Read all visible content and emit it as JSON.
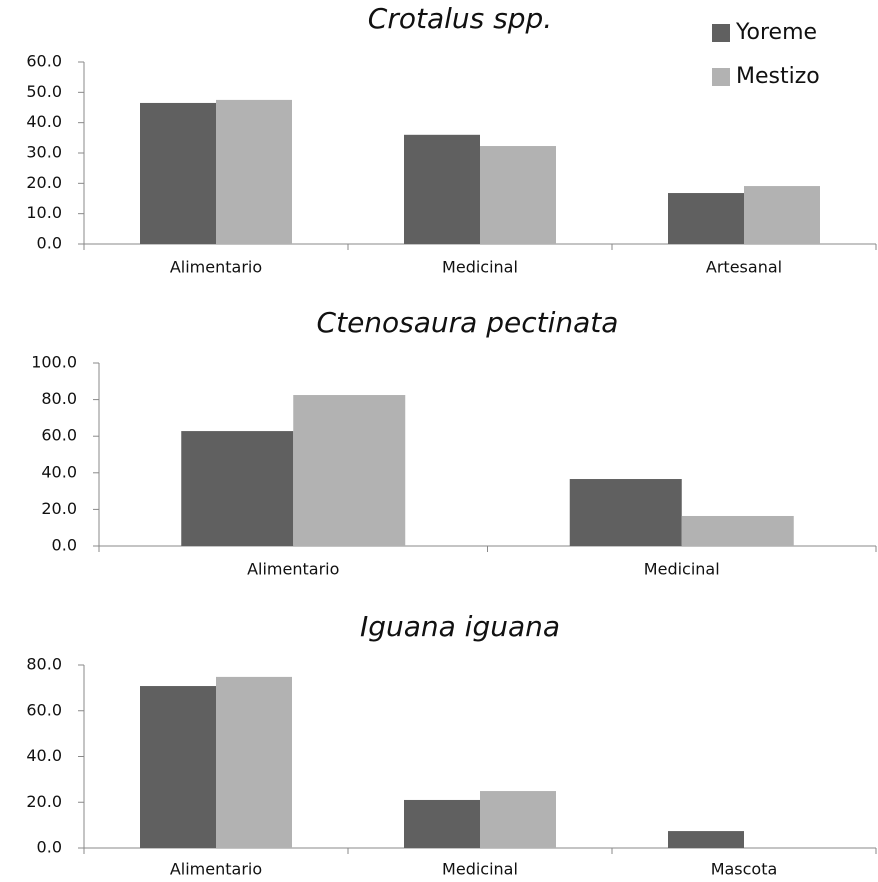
{
  "chart_data": [
    {
      "type": "bar",
      "title": "Crotalus spp.",
      "categories": [
        "Alimentario",
        "Medicinal",
        "Artesanal"
      ],
      "series": [
        {
          "name": "Yoreme",
          "color": "#606060",
          "values": [
            46.5,
            36.0,
            16.8
          ]
        },
        {
          "name": "Mestizo",
          "color": "#b2b2b2",
          "values": [
            47.5,
            32.3,
            19.1
          ]
        }
      ],
      "ylim": [
        0,
        60
      ],
      "yticks": [
        {
          "value": 0,
          "label": "0.0"
        },
        {
          "value": 10,
          "label": "10.0"
        },
        {
          "value": 20,
          "label": "20.0"
        },
        {
          "value": 30,
          "label": "30.0"
        },
        {
          "value": 40,
          "label": "40.0"
        },
        {
          "value": 50,
          "label": "50.0"
        },
        {
          "value": 60,
          "label": "60.0"
        }
      ],
      "legend": "top-right"
    },
    {
      "type": "bar",
      "title": "Ctenosaura pectinata",
      "categories": [
        "Alimentario",
        "Medicinal"
      ],
      "series": [
        {
          "color": "#606060",
          "values": [
            62.8,
            36.6
          ]
        },
        {
          "color": "#b2b2b2",
          "values": [
            82.5,
            16.4
          ]
        }
      ],
      "ylim": [
        0,
        100
      ],
      "yticks": [
        {
          "value": 0,
          "label": "0.0"
        },
        {
          "value": 20,
          "label": "20.0"
        },
        {
          "value": 40,
          "label": "40.0"
        },
        {
          "value": 60,
          "label": "60.0"
        },
        {
          "value": 80,
          "label": "80.0"
        },
        {
          "value": 100,
          "label": "100.0"
        }
      ]
    },
    {
      "type": "bar",
      "title": "Iguana iguana",
      "categories": [
        "Alimentario",
        "Medicinal",
        "Mascota"
      ],
      "series": [
        {
          "color": "#606060",
          "values": [
            70.8,
            21.0,
            7.4
          ]
        },
        {
          "color": "#b2b2b2",
          "values": [
            74.8,
            24.9,
            0
          ]
        }
      ],
      "ylim": [
        0,
        80
      ],
      "yticks": [
        {
          "value": 0,
          "label": "0.0"
        },
        {
          "value": 20,
          "label": "20.0"
        },
        {
          "value": 40,
          "label": "40.0"
        },
        {
          "value": 60,
          "label": "60.0"
        },
        {
          "value": 80,
          "label": "80.0"
        }
      ]
    }
  ]
}
